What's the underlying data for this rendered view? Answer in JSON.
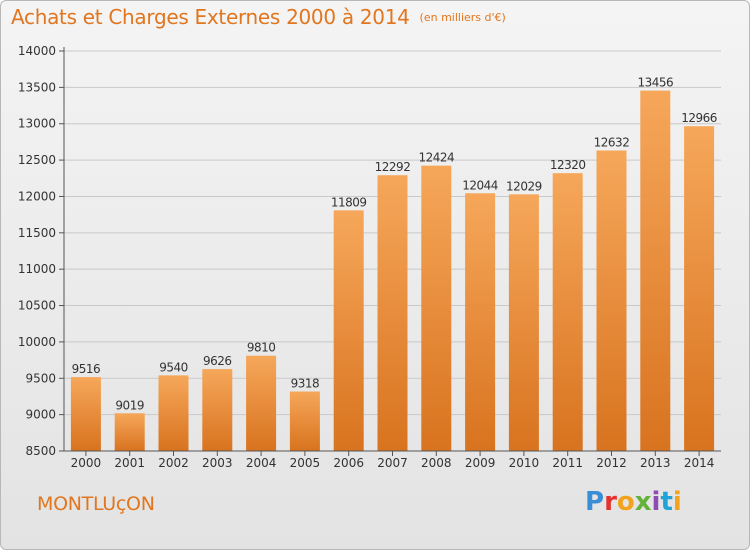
{
  "header": {
    "title": "Achats et Charges Externes 2000 à 2014",
    "subtitle": "(en milliers d'€)"
  },
  "footer": {
    "city": "MONTLUçON",
    "logo_text": "Proxiti"
  },
  "colors": {
    "bar_light": "#f6a75a",
    "bar_dark": "#d8731f",
    "text_orange": "#e2761e",
    "grid": "#c9c9c9"
  },
  "chart_data": {
    "type": "bar",
    "title": "Achats et Charges Externes 2000 à 2014",
    "subtitle": "(en milliers d'€)",
    "xlabel": "",
    "ylabel": "",
    "categories": [
      "2000",
      "2001",
      "2002",
      "2003",
      "2004",
      "2005",
      "2006",
      "2007",
      "2008",
      "2009",
      "2010",
      "2011",
      "2012",
      "2013",
      "2014"
    ],
    "values": [
      9516,
      9019,
      9540,
      9626,
      9810,
      9318,
      11809,
      12292,
      12424,
      12044,
      12029,
      12320,
      12632,
      13456,
      12966
    ],
    "ylim": [
      8500,
      14000
    ],
    "yticks": [
      8500,
      9000,
      9500,
      10000,
      10500,
      11000,
      11500,
      12000,
      12500,
      13000,
      13500,
      14000
    ],
    "grid": true,
    "data_labels": true
  }
}
